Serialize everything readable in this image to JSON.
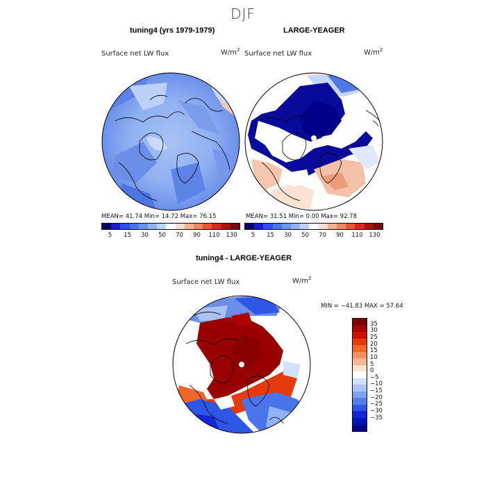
{
  "season": "DJF",
  "panels": {
    "left": {
      "title": "tuning4 (yrs 1979-1979)",
      "variable": "Surface net LW flux",
      "units": "W/m",
      "units_exp": "2",
      "stats": "MEAN=  41.74   Min=  14.72   Max=  76.15"
    },
    "right": {
      "title": "LARGE-YEAGER",
      "variable": "Surface net LW flux",
      "units": "W/m",
      "units_exp": "2",
      "stats": "MEAN=  31.51   Min=   0.00   Max=  92.78"
    },
    "diff": {
      "title": "tuning4 - LARGE-YEAGER",
      "variable": "Surface net LW flux",
      "units": "W/m",
      "units_exp": "2",
      "stats": "MIN = −41.83  MAX =  57.64"
    }
  },
  "colorbar_top": {
    "colors": [
      "#08006b",
      "#1a21c4",
      "#2e4fe0",
      "#4a74ec",
      "#6b93f2",
      "#90b3f7",
      "#bcd3fb",
      "#ffffff",
      "#fcdccb",
      "#f7b394",
      "#f08860",
      "#e35a34",
      "#c93219",
      "#a3160b",
      "#7a0508"
    ],
    "labels": [
      "5",
      "15",
      "30",
      "50",
      "70",
      "90",
      "110",
      "130"
    ]
  },
  "colorbar_diff": {
    "colors": [
      "#800000",
      "#a90000",
      "#cc1100",
      "#e43a0c",
      "#f0652a",
      "#f68f5e",
      "#f8b796",
      "#fde2d0",
      "#ffffff",
      "#d2e1fb",
      "#a8c4f6",
      "#7ea3ef",
      "#5580ea",
      "#2d55e6",
      "#1525d6",
      "#0012b6",
      "#00008c"
    ],
    "labels": [
      "35",
      "30",
      "25",
      "20",
      "15",
      "10",
      "5",
      "0",
      "−5",
      "−10",
      "−15",
      "−20",
      "−25",
      "−30",
      "−35"
    ]
  }
}
